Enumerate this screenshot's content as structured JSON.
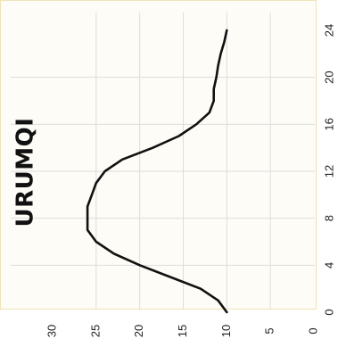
{
  "chart_data": {
    "type": "line",
    "title": "URUMQI",
    "xlabel": "",
    "ylabel": "",
    "xlim": [
      0,
      24
    ],
    "ylim": [
      0,
      30
    ],
    "x_ticks": [
      "0",
      "4",
      "8",
      "12",
      "16",
      "20",
      "24"
    ],
    "y_ticks": [
      "0",
      "5",
      "10",
      "15",
      "20",
      "25",
      "30"
    ],
    "grid": true,
    "orientation": "rotated 90° clockwise",
    "series": [
      {
        "x": [
          0,
          1,
          2,
          3,
          4,
          5,
          6,
          7,
          8,
          9,
          10,
          11,
          12,
          13,
          14,
          15,
          16,
          17,
          18,
          19,
          20,
          21,
          22,
          23,
          24
        ],
        "values": [
          10,
          11,
          13,
          16.5,
          20,
          23,
          25,
          26,
          26,
          26,
          25.5,
          25,
          24,
          22,
          18.5,
          15.5,
          13.5,
          12,
          11.5,
          11.5,
          11.2,
          11,
          10.7,
          10.3,
          10
        ]
      }
    ]
  },
  "colors": {
    "line": "#111111",
    "grid": "#dddddd",
    "panel_bg": "#fefcf6",
    "panel_border": "#efe3b8"
  }
}
